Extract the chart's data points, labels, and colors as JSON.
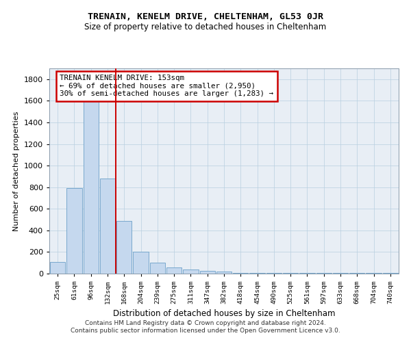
{
  "title1": "TRENAIN, KENELM DRIVE, CHELTENHAM, GL53 0JR",
  "title2": "Size of property relative to detached houses in Cheltenham",
  "xlabel": "Distribution of detached houses by size in Cheltenham",
  "ylabel": "Number of detached properties",
  "categories": [
    "25sqm",
    "61sqm",
    "96sqm",
    "132sqm",
    "168sqm",
    "204sqm",
    "239sqm",
    "275sqm",
    "311sqm",
    "347sqm",
    "382sqm",
    "418sqm",
    "454sqm",
    "490sqm",
    "525sqm",
    "561sqm",
    "597sqm",
    "633sqm",
    "668sqm",
    "704sqm",
    "740sqm"
  ],
  "values": [
    110,
    790,
    1620,
    880,
    490,
    205,
    100,
    60,
    35,
    25,
    20,
    5,
    5,
    5,
    5,
    5,
    5,
    5,
    5,
    5,
    5
  ],
  "bar_color": "#c5d8ee",
  "bar_edge_color": "#6a9fc8",
  "vline_color": "#cc0000",
  "vline_x": 3.5,
  "annotation_text": "TRENAIN KENELM DRIVE: 153sqm\n← 69% of detached houses are smaller (2,950)\n30% of semi-detached houses are larger (1,283) →",
  "annotation_box_color": "#ffffff",
  "annotation_box_edge": "#cc0000",
  "ylim": [
    0,
    1900
  ],
  "yticks": [
    0,
    200,
    400,
    600,
    800,
    1000,
    1200,
    1400,
    1600,
    1800
  ],
  "footer1": "Contains HM Land Registry data © Crown copyright and database right 2024.",
  "footer2": "Contains public sector information licensed under the Open Government Licence v3.0.",
  "grid_color": "#b8cfe0",
  "bg_color": "#e8eef5",
  "title1_fontsize": 9.5,
  "title2_fontsize": 8.5
}
